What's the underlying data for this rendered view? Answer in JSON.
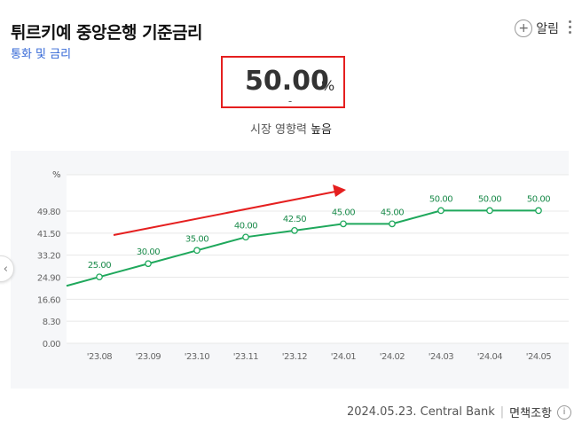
{
  "header": {
    "title": "튀르키예 중앙은행 기준금리",
    "subtitle": "통화 및 금리",
    "alarm_label": "알림",
    "alarm_icon": "plus-circle-icon",
    "more_icon": "kebab-icon"
  },
  "summary": {
    "value": "50.00",
    "unit": "%",
    "change": "-",
    "impact_label": "시장 영향력",
    "impact_value": "높음",
    "highlight_color": "#e51f1f"
  },
  "footer": {
    "date_source": "2024.05.23. Central Bank",
    "separator": "|",
    "policy_label": "면책조항",
    "info_icon": "info-icon"
  },
  "nav": {
    "prev_icon": "chevron-left-icon"
  },
  "chart_data": {
    "type": "line",
    "ylabel": "%",
    "yticks": [
      "0.00",
      "8.30",
      "16.60",
      "24.90",
      "33.20",
      "41.50",
      "49.80"
    ],
    "ylim": [
      0,
      49.8
    ],
    "x": [
      "'23.08",
      "'23.09",
      "'23.10",
      "'23.11",
      "'23.12",
      "'24.01",
      "'24.02",
      "'24.03",
      "'24.04",
      "'24.05"
    ],
    "values": [
      25.0,
      30.0,
      35.0,
      40.0,
      42.5,
      45.0,
      45.0,
      50.0,
      50.0,
      50.0
    ],
    "data_labels": [
      "25.00",
      "30.00",
      "35.00",
      "40.00",
      "42.50",
      "45.00",
      "45.00",
      "50.00",
      "50.00",
      "50.00"
    ],
    "line_color": "#1fa85c",
    "annotation_arrow_color": "#e51f1f",
    "grid": true
  }
}
